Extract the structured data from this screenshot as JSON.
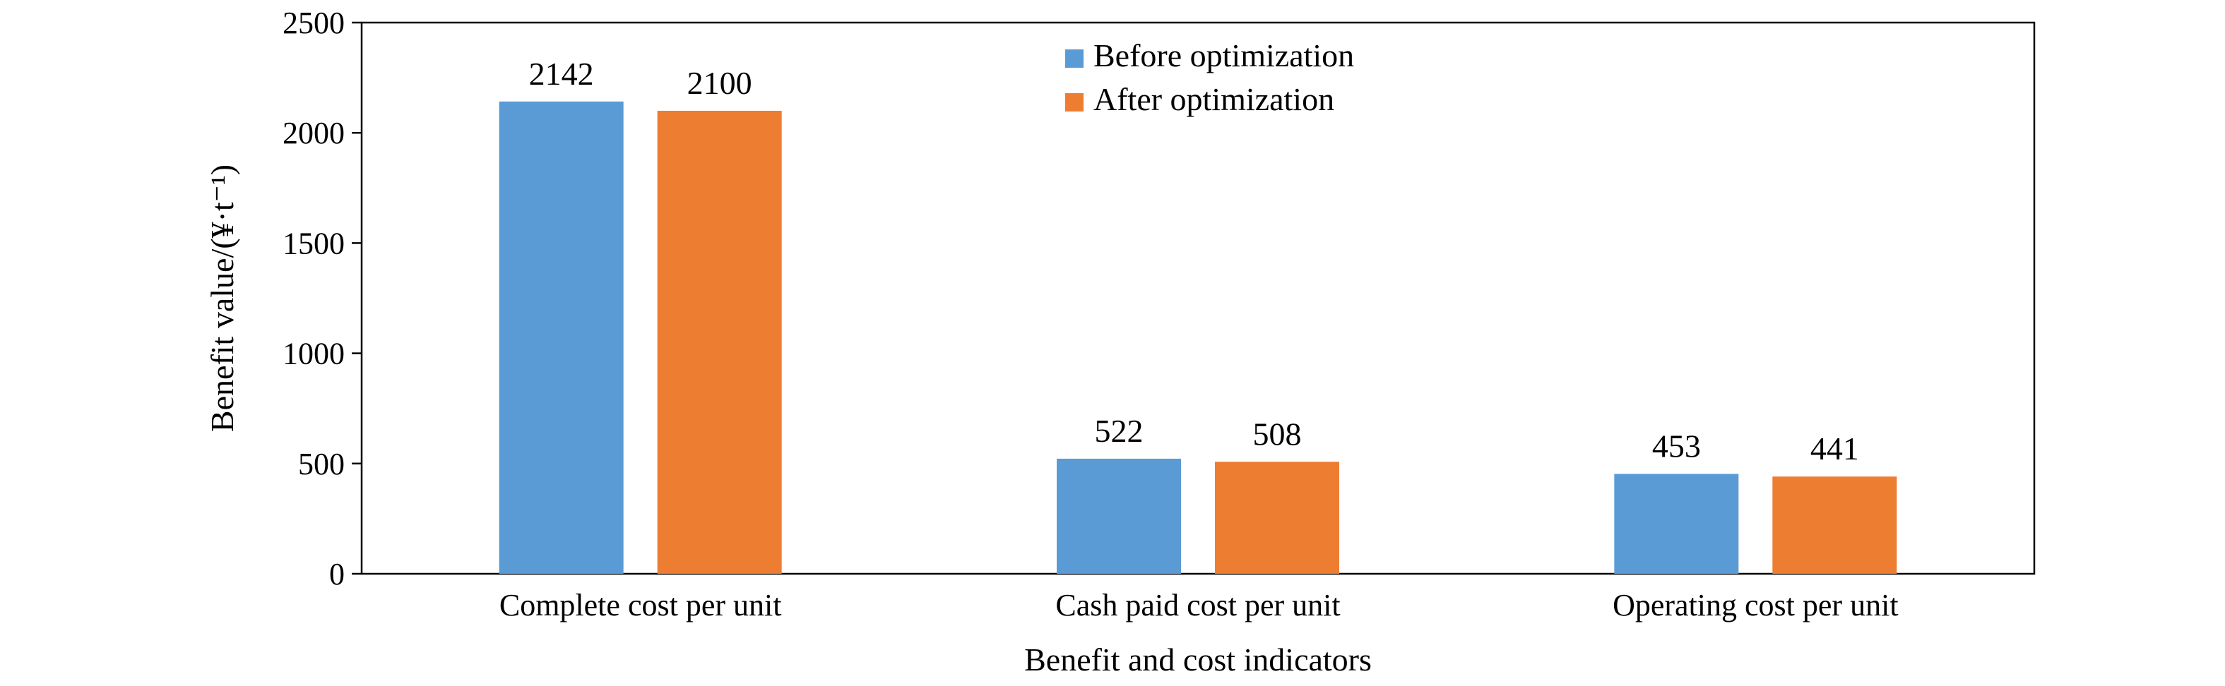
{
  "chart_data": {
    "type": "bar",
    "categories": [
      "Complete cost per unit",
      "Cash paid cost per unit",
      "Operating cost per unit"
    ],
    "series": [
      {
        "name": "Before optimization",
        "values": [
          2142,
          522,
          453
        ],
        "color": "#5B9BD5"
      },
      {
        "name": "After optimization",
        "values": [
          2100,
          508,
          441
        ],
        "color": "#ED7D31"
      }
    ],
    "xlabel": "Benefit and cost indicators",
    "ylabel": "Benefit value/(¥·t⁻¹)",
    "ylim": [
      0,
      2500
    ],
    "yticks": [
      0,
      500,
      1000,
      1500,
      2000,
      2500
    ],
    "grid": false,
    "legend_position": "top-center"
  }
}
